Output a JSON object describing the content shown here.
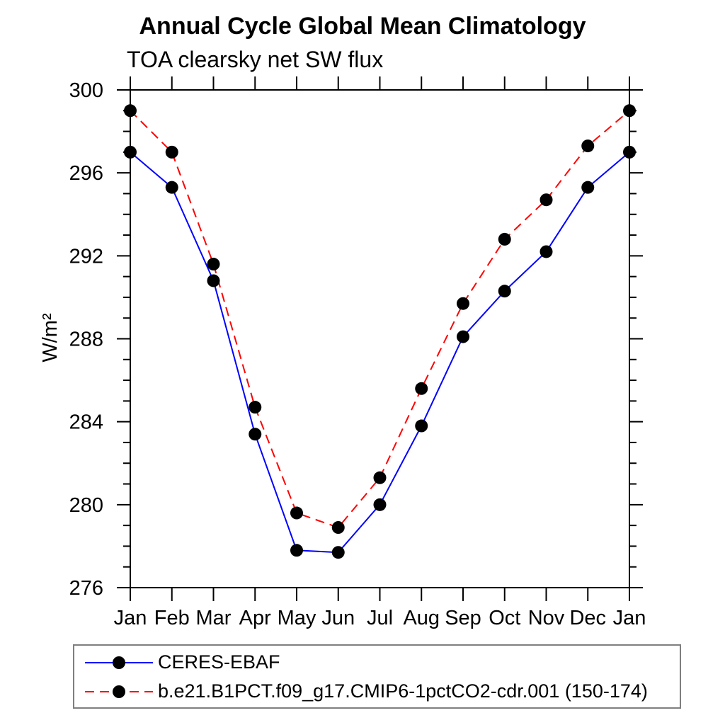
{
  "chart_data": {
    "type": "line",
    "title": "Annual Cycle Global Mean Climatology",
    "subtitle": "TOA clearsky net SW flux",
    "ylabel": "W/m²",
    "xlabel": "",
    "categories": [
      "Jan",
      "Feb",
      "Mar",
      "Apr",
      "May",
      "Jun",
      "Jul",
      "Aug",
      "Sep",
      "Oct",
      "Nov",
      "Dec",
      "Jan"
    ],
    "ylim": [
      276,
      300
    ],
    "ytick_major": 4,
    "ytick_minor": 1,
    "grid": false,
    "legend_position": "bottom-left",
    "axis_color": "#000000",
    "series": [
      {
        "name": "CERES-EBAF",
        "color": "#0000ff",
        "line_style": "solid",
        "marker": "filled-circle",
        "marker_color": "#000000",
        "values": [
          297.0,
          295.3,
          290.8,
          283.4,
          277.8,
          277.7,
          280.0,
          283.8,
          288.1,
          290.3,
          292.2,
          295.3,
          297.0
        ]
      },
      {
        "name": "b.e21.B1PCT.f09_g17.CMIP6-1pctCO2-cdr.001 (150-174)",
        "color": "#ff0000",
        "line_style": "dashed",
        "marker": "filled-circle",
        "marker_color": "#000000",
        "values": [
          299.0,
          297.0,
          291.6,
          284.7,
          279.6,
          278.9,
          281.3,
          285.6,
          289.7,
          292.8,
          294.7,
          297.3,
          299.0
        ]
      }
    ]
  }
}
